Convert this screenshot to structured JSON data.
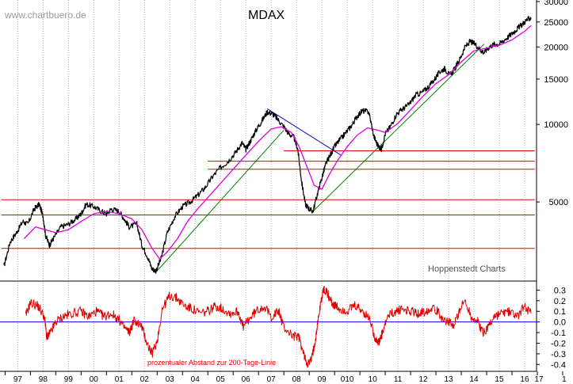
{
  "watermark": "www.chartbuero.de",
  "credit": "Hoppenstedt Charts",
  "chart_data": [
    {
      "type": "line",
      "title": "MDAX",
      "scale": "log",
      "ylim": [
        2500,
        30000
      ],
      "y_ticks": [
        "30000",
        "25000",
        "20000",
        "15000",
        "10000",
        "5000"
      ],
      "x_ticks": [
        "97",
        "98",
        "99",
        "00",
        "01",
        "02",
        "03",
        "04",
        "05",
        "06",
        "07",
        "08",
        "09",
        "010",
        "10",
        "11",
        "12",
        "13",
        "14",
        "15",
        "16",
        "17",
        "1"
      ],
      "grid": "vertical dotted",
      "series": [
        {
          "color": "#000000",
          "x": [
            1996.95,
            1997.2,
            1997.45,
            1997.7,
            1997.9,
            1998.15,
            1998.35,
            1998.5,
            1998.6,
            1998.75,
            1998.9,
            1999.2,
            1999.5,
            1999.8,
            2000.0,
            2000.2,
            2000.5,
            2000.8,
            2001.0,
            2001.2,
            2001.5,
            2001.7,
            2001.9,
            2002.2,
            2002.4,
            2002.6,
            2002.8,
            2002.95,
            2003.15,
            2003.4,
            2003.7,
            2004.0,
            2004.3,
            2004.6,
            2004.9,
            2005.2,
            2005.5,
            2005.8,
            2006.1,
            2006.35,
            2006.5,
            2006.7,
            2006.9,
            2007.1,
            2007.35,
            2007.55,
            2007.75,
            2008.0,
            2008.2,
            2008.4,
            2008.55,
            2008.7,
            2008.85,
            2009.0,
            2009.15,
            2009.35,
            2009.5,
            2009.65,
            2009.8,
            2010.0,
            2010.2,
            2010.45,
            2010.7,
            2010.9,
            2011.1,
            2011.35,
            2011.55,
            2011.7,
            2011.85,
            2012.0,
            2012.2,
            2012.45,
            2012.7,
            2012.95,
            2013.2,
            2013.45,
            2013.7,
            2013.95,
            2014.15,
            2014.35,
            2014.55,
            2014.75,
            2014.95,
            2015.15,
            2015.35,
            2015.55,
            2015.75,
            2015.9,
            2016.1,
            2016.3,
            2016.5,
            2016.75,
            2017.0,
            2017.2,
            2017.4,
            2017.6,
            2017.75
          ],
          "values": [
            2800,
            3500,
            3800,
            4200,
            4100,
            4700,
            4900,
            4400,
            3700,
            3400,
            3600,
            4000,
            4100,
            4300,
            4500,
            4900,
            4800,
            4600,
            4500,
            4700,
            4600,
            4300,
            4000,
            4100,
            3400,
            3100,
            2750,
            2700,
            3000,
            3800,
            4400,
            4800,
            5000,
            5300,
            5700,
            6300,
            6800,
            7200,
            7800,
            8500,
            8000,
            8700,
            9500,
            10200,
            11200,
            11000,
            10500,
            9800,
            9200,
            8900,
            8000,
            6000,
            4900,
            4700,
            4600,
            5500,
            6200,
            7000,
            7500,
            8200,
            8700,
            9300,
            10000,
            10800,
            11300,
            11200,
            9000,
            8300,
            8000,
            9200,
            9800,
            11000,
            11500,
            12000,
            13000,
            13300,
            14000,
            15000,
            16000,
            16500,
            15500,
            16500,
            18000,
            20000,
            21000,
            20500,
            19500,
            19000,
            20000,
            20500,
            20500,
            21500,
            22500,
            23500,
            24500,
            25500,
            26000
          ]
        },
        {
          "color": "#e000e0",
          "x": [
            1997.75,
            1998.2,
            1998.6,
            1999.0,
            1999.5,
            2000.0,
            2000.5,
            2001.0,
            2001.5,
            2002.0,
            2002.4,
            2002.8,
            2003.1,
            2003.4,
            2003.8,
            2004.2,
            2004.6,
            2005.0,
            2005.5,
            2006.0,
            2006.5,
            2007.0,
            2007.5,
            2007.9,
            2008.3,
            2008.6,
            2008.9,
            2009.2,
            2009.5,
            2009.8,
            2010.1,
            2010.5,
            2010.9,
            2011.3,
            2011.7,
            2012.0,
            2012.5,
            2013.0,
            2013.5,
            2014.0,
            2014.5,
            2015.0,
            2015.5,
            2016.0,
            2016.5,
            2017.0,
            2017.5,
            2017.75
          ],
          "values": [
            3600,
            4000,
            3900,
            3800,
            3900,
            4200,
            4500,
            4600,
            4500,
            4300,
            3900,
            3300,
            3000,
            3200,
            3600,
            4200,
            4700,
            5200,
            5900,
            6700,
            7600,
            8600,
            9600,
            9800,
            9300,
            8200,
            6900,
            5800,
            5600,
            6400,
            7200,
            8200,
            9100,
            9700,
            9500,
            9300,
            10100,
            11400,
            12900,
            14400,
            15600,
            17500,
            19300,
            19800,
            20300,
            21300,
            23000,
            24200
          ]
        }
      ],
      "annotations": [
        {
          "kind": "trendline",
          "color": "#008000",
          "x": [
            2003.0,
            2008.0
          ],
          "values": [
            2700,
            9500
          ]
        },
        {
          "kind": "trendline",
          "color": "#008000",
          "x": [
            2009.15,
            2015.9
          ],
          "values": [
            4600,
            20500
          ]
        },
        {
          "kind": "trendline",
          "color": "#0000c0",
          "x": [
            2007.35,
            2010.25
          ],
          "values": [
            11500,
            7600
          ]
        },
        {
          "kind": "level",
          "color": "#e00000",
          "value": 3300,
          "x": [
            1996.85,
            2017.9
          ]
        },
        {
          "kind": "level",
          "color": "#e00000",
          "value": 4450,
          "x": [
            1996.85,
            2017.9
          ]
        },
        {
          "kind": "level",
          "color": "#e00000",
          "value": 5100,
          "x": [
            1996.85,
            2017.9
          ]
        },
        {
          "kind": "level",
          "color": "#e00000",
          "value": 6700,
          "x": [
            2005.0,
            2017.9
          ]
        },
        {
          "kind": "level",
          "color": "#e00000",
          "value": 7200,
          "x": [
            2005.0,
            2017.9
          ]
        },
        {
          "kind": "level",
          "color": "#e00000",
          "value": 7900,
          "x": [
            2008.0,
            2017.9
          ]
        }
      ]
    },
    {
      "type": "line",
      "ylim": [
        -0.45,
        0.37
      ],
      "y_ticks": [
        "0.3",
        "0.2",
        "0.1",
        "0.0",
        "-0.1",
        "-0.2",
        "-0.3",
        "-0.4"
      ],
      "annotation": "prozentualer Abstand zur 200-Tage-Linie",
      "zero_line_color": "#0000ff",
      "series": [
        {
          "color": "#e00000",
          "x": [
            1997.8,
            1998.0,
            1998.3,
            1998.55,
            1998.65,
            1998.8,
            1999.0,
            1999.3,
            1999.6,
            2000.0,
            2000.3,
            2000.6,
            2000.9,
            2001.2,
            2001.5,
            2001.7,
            2001.9,
            2002.1,
            2002.4,
            2002.6,
            2002.8,
            2003.0,
            2003.2,
            2003.5,
            2003.8,
            2004.1,
            2004.4,
            2004.7,
            2005.0,
            2005.3,
            2005.6,
            2005.9,
            2006.2,
            2006.4,
            2006.6,
            2006.9,
            2007.2,
            2007.5,
            2007.8,
            2008.0,
            2008.3,
            2008.6,
            2008.8,
            2008.95,
            2009.1,
            2009.25,
            2009.4,
            2009.55,
            2009.7,
            2009.85,
            2010.0,
            2010.2,
            2010.5,
            2010.8,
            2011.1,
            2011.4,
            2011.6,
            2011.75,
            2011.9,
            2012.1,
            2012.4,
            2012.7,
            2013.0,
            2013.3,
            2013.6,
            2013.9,
            2014.2,
            2014.5,
            2014.7,
            2014.9,
            2015.15,
            2015.4,
            2015.65,
            2015.85,
            2016.05,
            2016.3,
            2016.6,
            2016.9,
            2017.2,
            2017.5,
            2017.75
          ],
          "values": [
            0.05,
            0.18,
            0.15,
            0.05,
            -0.15,
            -0.1,
            0.0,
            0.05,
            0.08,
            0.1,
            0.05,
            0.1,
            0.05,
            0.08,
            0.02,
            -0.05,
            -0.1,
            0.02,
            -0.05,
            -0.2,
            -0.3,
            -0.18,
            0.12,
            0.25,
            0.22,
            0.15,
            0.12,
            0.08,
            0.1,
            0.15,
            0.12,
            0.08,
            0.1,
            -0.05,
            0.02,
            0.1,
            0.15,
            0.05,
            0.1,
            -0.05,
            -0.12,
            -0.15,
            -0.32,
            -0.4,
            -0.35,
            -0.15,
            0.1,
            0.3,
            0.28,
            0.2,
            0.15,
            0.12,
            0.1,
            0.15,
            0.1,
            0.02,
            -0.15,
            -0.2,
            -0.1,
            0.05,
            0.1,
            0.12,
            0.1,
            0.08,
            0.1,
            0.15,
            0.05,
            0.0,
            -0.05,
            0.1,
            0.2,
            0.05,
            0.0,
            -0.1,
            -0.05,
            0.05,
            0.08,
            0.1,
            0.05,
            0.15,
            0.08
          ]
        }
      ]
    }
  ]
}
